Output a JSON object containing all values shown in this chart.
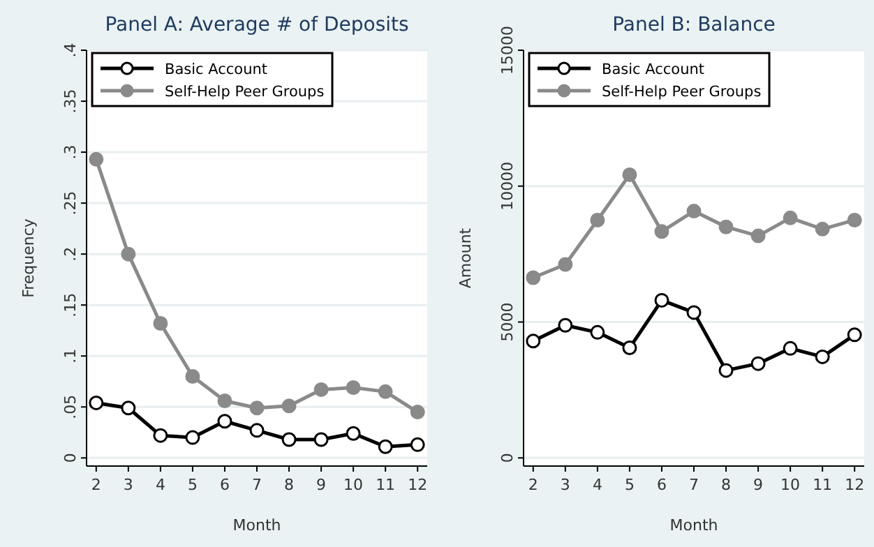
{
  "chart_data": [
    {
      "type": "line",
      "title": "Panel A: Average # of Deposits",
      "xlabel": "Month",
      "ylabel": "Frequency",
      "x": [
        2,
        3,
        4,
        5,
        6,
        7,
        8,
        9,
        10,
        11,
        12
      ],
      "xlim": [
        1.7,
        12.3
      ],
      "xticks": [
        2,
        3,
        4,
        5,
        6,
        7,
        8,
        9,
        10,
        11,
        12
      ],
      "ylim": [
        -0.008,
        0.4
      ],
      "yticks": [
        {
          "value": 0,
          "label": "0"
        },
        {
          "value": 0.05,
          "label": ".05"
        },
        {
          "value": 0.1,
          "label": ".1"
        },
        {
          "value": 0.15,
          "label": ".15"
        },
        {
          "value": 0.2,
          "label": ".2"
        },
        {
          "value": 0.25,
          "label": ".25"
        },
        {
          "value": 0.3,
          "label": ".3"
        },
        {
          "value": 0.35,
          "label": ".35"
        },
        {
          "value": 0.4,
          "label": ".4"
        }
      ],
      "grid": "y",
      "legend": "top left",
      "marker": "circle",
      "series": [
        {
          "name": "Basic Account",
          "color": "#000000",
          "values": [
            0.054,
            0.049,
            0.022,
            0.02,
            0.036,
            0.027,
            0.018,
            0.018,
            0.024,
            0.011,
            0.013
          ]
        },
        {
          "name": "Self-Help Peer Groups",
          "color": "#8a8a8a",
          "values": [
            0.293,
            0.2,
            0.132,
            0.08,
            0.056,
            0.049,
            0.051,
            0.067,
            0.069,
            0.065,
            0.045
          ]
        }
      ]
    },
    {
      "type": "line",
      "title": "Panel B: Balance",
      "xlabel": "Month",
      "ylabel": "Amount",
      "x": [
        2,
        3,
        4,
        5,
        6,
        7,
        8,
        9,
        10,
        11,
        12
      ],
      "xlim": [
        1.7,
        12.3
      ],
      "xticks": [
        2,
        3,
        4,
        5,
        6,
        7,
        8,
        9,
        10,
        11,
        12
      ],
      "ylim": [
        -300,
        15000
      ],
      "yticks": [
        0,
        5000,
        10000,
        15000
      ],
      "grid": "y",
      "legend": "top left",
      "marker": "circle",
      "series": [
        {
          "name": "Basic Account",
          "color": "#000000",
          "values": [
            4300,
            4880,
            4620,
            4050,
            5800,
            5350,
            3220,
            3470,
            4030,
            3720,
            4530
          ]
        },
        {
          "name": "Self-Help Peer Groups",
          "color": "#8a8a8a",
          "values": [
            6630,
            7120,
            8750,
            10420,
            8330,
            9080,
            8500,
            8170,
            8830,
            8420,
            8750
          ]
        }
      ]
    }
  ]
}
